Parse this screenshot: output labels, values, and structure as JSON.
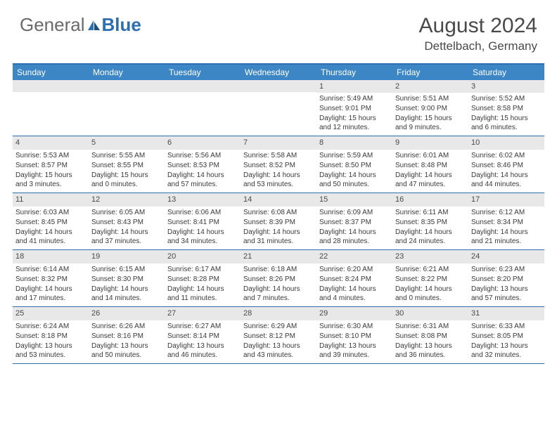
{
  "logo": {
    "text1": "General",
    "text2": "Blue"
  },
  "title": "August 2024",
  "location": "Dettelbach, Germany",
  "colors": {
    "header_bg": "#3d86c6",
    "border": "#2d6fb0",
    "daynum_bg": "#e8e8e8",
    "text": "#4a4a4a",
    "cell_text": "#3a3a3a"
  },
  "day_headers": [
    "Sunday",
    "Monday",
    "Tuesday",
    "Wednesday",
    "Thursday",
    "Friday",
    "Saturday"
  ],
  "weeks": [
    [
      {
        "n": "",
        "sr": "",
        "ss": "",
        "dl": ""
      },
      {
        "n": "",
        "sr": "",
        "ss": "",
        "dl": ""
      },
      {
        "n": "",
        "sr": "",
        "ss": "",
        "dl": ""
      },
      {
        "n": "",
        "sr": "",
        "ss": "",
        "dl": ""
      },
      {
        "n": "1",
        "sr": "5:49 AM",
        "ss": "9:01 PM",
        "dl": "15 hours and 12 minutes."
      },
      {
        "n": "2",
        "sr": "5:51 AM",
        "ss": "9:00 PM",
        "dl": "15 hours and 9 minutes."
      },
      {
        "n": "3",
        "sr": "5:52 AM",
        "ss": "8:58 PM",
        "dl": "15 hours and 6 minutes."
      }
    ],
    [
      {
        "n": "4",
        "sr": "5:53 AM",
        "ss": "8:57 PM",
        "dl": "15 hours and 3 minutes."
      },
      {
        "n": "5",
        "sr": "5:55 AM",
        "ss": "8:55 PM",
        "dl": "15 hours and 0 minutes."
      },
      {
        "n": "6",
        "sr": "5:56 AM",
        "ss": "8:53 PM",
        "dl": "14 hours and 57 minutes."
      },
      {
        "n": "7",
        "sr": "5:58 AM",
        "ss": "8:52 PM",
        "dl": "14 hours and 53 minutes."
      },
      {
        "n": "8",
        "sr": "5:59 AM",
        "ss": "8:50 PM",
        "dl": "14 hours and 50 minutes."
      },
      {
        "n": "9",
        "sr": "6:01 AM",
        "ss": "8:48 PM",
        "dl": "14 hours and 47 minutes."
      },
      {
        "n": "10",
        "sr": "6:02 AM",
        "ss": "8:46 PM",
        "dl": "14 hours and 44 minutes."
      }
    ],
    [
      {
        "n": "11",
        "sr": "6:03 AM",
        "ss": "8:45 PM",
        "dl": "14 hours and 41 minutes."
      },
      {
        "n": "12",
        "sr": "6:05 AM",
        "ss": "8:43 PM",
        "dl": "14 hours and 37 minutes."
      },
      {
        "n": "13",
        "sr": "6:06 AM",
        "ss": "8:41 PM",
        "dl": "14 hours and 34 minutes."
      },
      {
        "n": "14",
        "sr": "6:08 AM",
        "ss": "8:39 PM",
        "dl": "14 hours and 31 minutes."
      },
      {
        "n": "15",
        "sr": "6:09 AM",
        "ss": "8:37 PM",
        "dl": "14 hours and 28 minutes."
      },
      {
        "n": "16",
        "sr": "6:11 AM",
        "ss": "8:35 PM",
        "dl": "14 hours and 24 minutes."
      },
      {
        "n": "17",
        "sr": "6:12 AM",
        "ss": "8:34 PM",
        "dl": "14 hours and 21 minutes."
      }
    ],
    [
      {
        "n": "18",
        "sr": "6:14 AM",
        "ss": "8:32 PM",
        "dl": "14 hours and 17 minutes."
      },
      {
        "n": "19",
        "sr": "6:15 AM",
        "ss": "8:30 PM",
        "dl": "14 hours and 14 minutes."
      },
      {
        "n": "20",
        "sr": "6:17 AM",
        "ss": "8:28 PM",
        "dl": "14 hours and 11 minutes."
      },
      {
        "n": "21",
        "sr": "6:18 AM",
        "ss": "8:26 PM",
        "dl": "14 hours and 7 minutes."
      },
      {
        "n": "22",
        "sr": "6:20 AM",
        "ss": "8:24 PM",
        "dl": "14 hours and 4 minutes."
      },
      {
        "n": "23",
        "sr": "6:21 AM",
        "ss": "8:22 PM",
        "dl": "14 hours and 0 minutes."
      },
      {
        "n": "24",
        "sr": "6:23 AM",
        "ss": "8:20 PM",
        "dl": "13 hours and 57 minutes."
      }
    ],
    [
      {
        "n": "25",
        "sr": "6:24 AM",
        "ss": "8:18 PM",
        "dl": "13 hours and 53 minutes."
      },
      {
        "n": "26",
        "sr": "6:26 AM",
        "ss": "8:16 PM",
        "dl": "13 hours and 50 minutes."
      },
      {
        "n": "27",
        "sr": "6:27 AM",
        "ss": "8:14 PM",
        "dl": "13 hours and 46 minutes."
      },
      {
        "n": "28",
        "sr": "6:29 AM",
        "ss": "8:12 PM",
        "dl": "13 hours and 43 minutes."
      },
      {
        "n": "29",
        "sr": "6:30 AM",
        "ss": "8:10 PM",
        "dl": "13 hours and 39 minutes."
      },
      {
        "n": "30",
        "sr": "6:31 AM",
        "ss": "8:08 PM",
        "dl": "13 hours and 36 minutes."
      },
      {
        "n": "31",
        "sr": "6:33 AM",
        "ss": "8:05 PM",
        "dl": "13 hours and 32 minutes."
      }
    ]
  ],
  "labels": {
    "sunrise": "Sunrise:",
    "sunset": "Sunset:",
    "daylight": "Daylight:"
  }
}
